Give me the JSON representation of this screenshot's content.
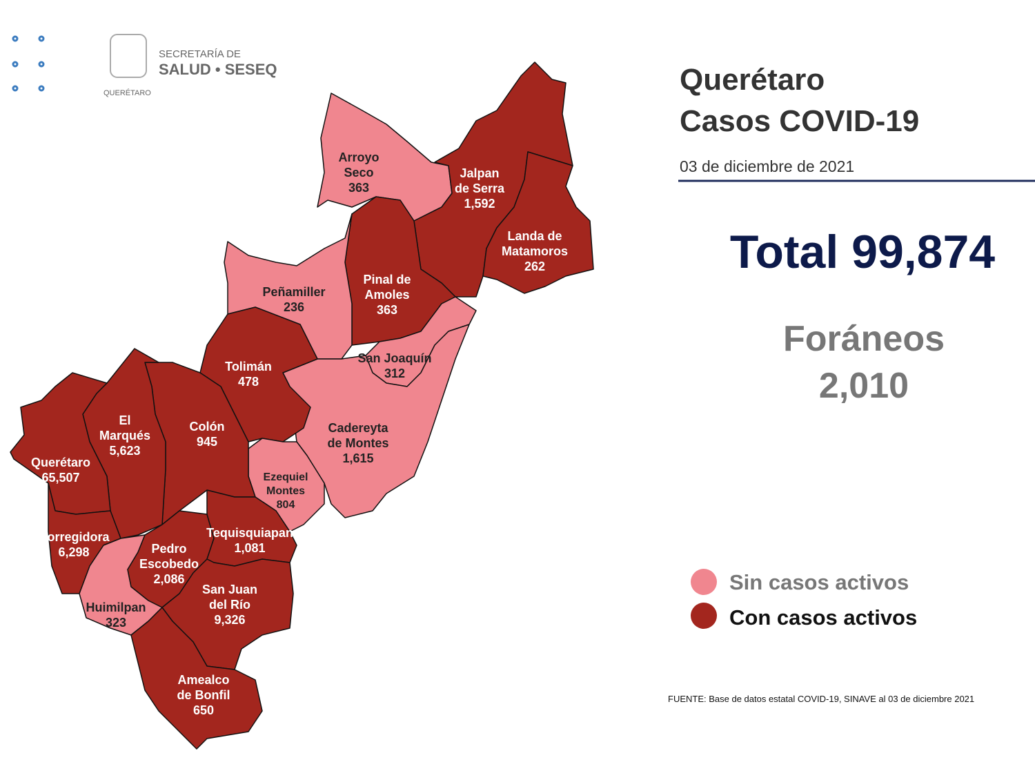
{
  "logo": {
    "line1": "SECRETARÍA DE",
    "line2": "SALUD • SESEQ",
    "line3": "QUERÉTARO"
  },
  "header": {
    "title_lines": [
      "Querétaro",
      "Casos COVID-19"
    ],
    "date": "03 de diciembre de 2021"
  },
  "summary": {
    "total": "Total 99,874",
    "foraneos_label": "Foráneos",
    "foraneos": "2,010"
  },
  "legend": [
    {
      "label": "Sin casos activos",
      "color": "#f0868f"
    },
    {
      "label": "Con casos activos",
      "color": "#a3261e"
    }
  ],
  "map": {
    "regions": [
      {
        "name": [
          "Arroyo",
          "Seco"
        ],
        "count": "363",
        "color": "#f0868f"
      },
      {
        "name": [
          "Jalpan",
          "de Serra"
        ],
        "count": "1,592",
        "color": "#a3261e"
      },
      {
        "name": [
          "Landa de",
          "Matamoros"
        ],
        "count": "262",
        "color": "#a3261e"
      },
      {
        "name": [
          "Pinal de",
          "Amoles"
        ],
        "count": "363",
        "color": "#a3261e"
      },
      {
        "name": [
          "Peñamiller"
        ],
        "count": "236",
        "color": "#f0868f"
      },
      {
        "name": [
          "San Joaquín"
        ],
        "count": "312",
        "color": "#f0868f"
      },
      {
        "name": [
          "Cadereyta",
          "de Montes"
        ],
        "count": "1,615",
        "color": "#f0868f"
      },
      {
        "name": [
          "Tolimán"
        ],
        "count": "478",
        "color": "#a3261e"
      },
      {
        "name": [
          "Ezequiel",
          "Montes"
        ],
        "count": "804",
        "color": "#f0868f"
      },
      {
        "name": [
          "Colón"
        ],
        "count": "945",
        "color": "#a3261e"
      },
      {
        "name": [
          "El",
          "Marqués"
        ],
        "count": "5,623",
        "color": "#a3261e"
      },
      {
        "name": [
          "Querétaro"
        ],
        "count": "65,507",
        "color": "#a3261e"
      },
      {
        "name": [
          "Corregidora"
        ],
        "count": "6,298",
        "color": "#a3261e"
      },
      {
        "name": [
          "Huimilpan"
        ],
        "count": "323",
        "color": "#f0868f"
      },
      {
        "name": [
          "Pedro",
          "Escobedo"
        ],
        "count": "2,086",
        "color": "#a3261e"
      },
      {
        "name": [
          "Tequisquiapan"
        ],
        "count": "1,081",
        "color": "#a3261e"
      },
      {
        "name": [
          "San Juan",
          "del Río"
        ],
        "count": "9,326",
        "color": "#a3261e"
      },
      {
        "name": [
          "Amealco",
          "de Bonfil"
        ],
        "count": "650",
        "color": "#a3261e"
      }
    ]
  },
  "footer": "FUENTE: Base de datos estatal COVID-19, SINAVE al 03 de diciembre 2021"
}
